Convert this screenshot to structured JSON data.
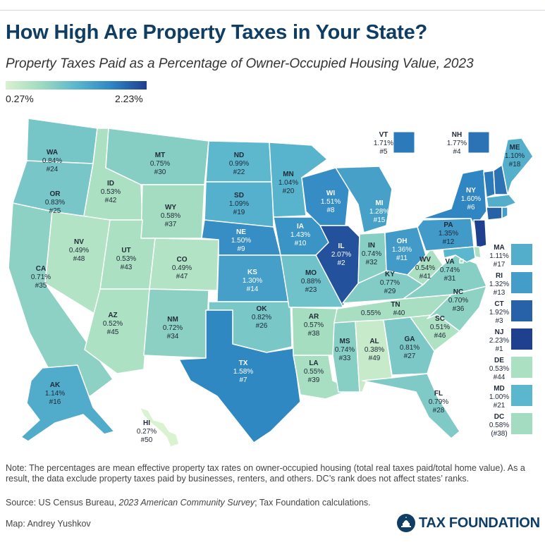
{
  "title": "How High Are Property Taxes in Your State?",
  "subtitle": "Property Taxes Paid as a Percentage of Owner-Occupied Housing Value, 2023",
  "legend": {
    "min": "0.27%",
    "max": "2.23%"
  },
  "colors": {
    "low": "#d9f2cf",
    "mid": "#5bb7cd",
    "high": "#1f3f8f",
    "title": "#0f3d63"
  },
  "states": [
    {
      "abbr": "WA",
      "rate": "0.84%",
      "rank": "#24",
      "value": 0.84
    },
    {
      "abbr": "OR",
      "rate": "0.83%",
      "rank": "#25",
      "value": 0.83
    },
    {
      "abbr": "CA",
      "rate": "0.71%",
      "rank": "#35",
      "value": 0.71
    },
    {
      "abbr": "ID",
      "rate": "0.53%",
      "rank": "#42",
      "value": 0.53
    },
    {
      "abbr": "NV",
      "rate": "0.49%",
      "rank": "#48",
      "value": 0.49
    },
    {
      "abbr": "MT",
      "rate": "0.75%",
      "rank": "#30",
      "value": 0.75
    },
    {
      "abbr": "WY",
      "rate": "0.58%",
      "rank": "#37",
      "value": 0.58
    },
    {
      "abbr": "UT",
      "rate": "0.53%",
      "rank": "#43",
      "value": 0.53
    },
    {
      "abbr": "AZ",
      "rate": "0.52%",
      "rank": "#45",
      "value": 0.52
    },
    {
      "abbr": "CO",
      "rate": "0.49%",
      "rank": "#47",
      "value": 0.49
    },
    {
      "abbr": "NM",
      "rate": "0.72%",
      "rank": "#34",
      "value": 0.72
    },
    {
      "abbr": "ND",
      "rate": "0.99%",
      "rank": "#22",
      "value": 0.99
    },
    {
      "abbr": "SD",
      "rate": "1.09%",
      "rank": "#19",
      "value": 1.09
    },
    {
      "abbr": "NE",
      "rate": "1.50%",
      "rank": "#9",
      "value": 1.5
    },
    {
      "abbr": "KS",
      "rate": "1.30%",
      "rank": "#14",
      "value": 1.3
    },
    {
      "abbr": "OK",
      "rate": "0.82%",
      "rank": "#26",
      "value": 0.82
    },
    {
      "abbr": "TX",
      "rate": "1.58%",
      "rank": "#7",
      "value": 1.58
    },
    {
      "abbr": "MN",
      "rate": "1.04%",
      "rank": "#20",
      "value": 1.04
    },
    {
      "abbr": "IA",
      "rate": "1.43%",
      "rank": "#10",
      "value": 1.43
    },
    {
      "abbr": "MO",
      "rate": "0.88%",
      "rank": "#23",
      "value": 0.88
    },
    {
      "abbr": "AR",
      "rate": "0.57%",
      "rank": "#38",
      "value": 0.57
    },
    {
      "abbr": "LA",
      "rate": "0.55%",
      "rank": "#39",
      "value": 0.55
    },
    {
      "abbr": "WI",
      "rate": "1.51%",
      "rank": "#8",
      "value": 1.51
    },
    {
      "abbr": "IL",
      "rate": "2.07%",
      "rank": "#2",
      "value": 2.07
    },
    {
      "abbr": "MI",
      "rate": "1.28%",
      "rank": "#15",
      "value": 1.28
    },
    {
      "abbr": "IN",
      "rate": "0.74%",
      "rank": "#32",
      "value": 0.74
    },
    {
      "abbr": "OH",
      "rate": "1.36%",
      "rank": "#11",
      "value": 1.36
    },
    {
      "abbr": "KY",
      "rate": "0.77%",
      "rank": "#29",
      "value": 0.77
    },
    {
      "abbr": "TN",
      "rate": "0.55%",
      "rank": "#40",
      "value": 0.55
    },
    {
      "abbr": "MS",
      "rate": "0.74%",
      "rank": "#33",
      "value": 0.74
    },
    {
      "abbr": "AL",
      "rate": "0.38%",
      "rank": "#49",
      "value": 0.38
    },
    {
      "abbr": "GA",
      "rate": "0.81%",
      "rank": "#27",
      "value": 0.81
    },
    {
      "abbr": "FL",
      "rate": "0.79%",
      "rank": "#28",
      "value": 0.79
    },
    {
      "abbr": "SC",
      "rate": "0.51%",
      "rank": "#46",
      "value": 0.51
    },
    {
      "abbr": "NC",
      "rate": "0.70%",
      "rank": "#36",
      "value": 0.7
    },
    {
      "abbr": "VA",
      "rate": "0.74%",
      "rank": "#31",
      "value": 0.74
    },
    {
      "abbr": "WV",
      "rate": "0.54%",
      "rank": "#41",
      "value": 0.54
    },
    {
      "abbr": "PA",
      "rate": "1.35%",
      "rank": "#12",
      "value": 1.35
    },
    {
      "abbr": "NY",
      "rate": "1.60%",
      "rank": "#6",
      "value": 1.6
    },
    {
      "abbr": "ME",
      "rate": "1.10%",
      "rank": "#18",
      "value": 1.1
    },
    {
      "abbr": "AK",
      "rate": "1.14%",
      "rank": "#16",
      "value": 1.14
    },
    {
      "abbr": "HI",
      "rate": "0.27%",
      "rank": "#50",
      "value": 0.27
    }
  ],
  "callouts": [
    {
      "abbr": "VT",
      "rate": "1.71%",
      "rank": "#5",
      "value": 1.71
    },
    {
      "abbr": "NH",
      "rate": "1.77%",
      "rank": "#4",
      "value": 1.77
    }
  ],
  "side_legend": [
    {
      "abbr": "MA",
      "rate": "1.11%",
      "rank": "#17",
      "value": 1.11
    },
    {
      "abbr": "RI",
      "rate": "1.32%",
      "rank": "#13",
      "value": 1.32
    },
    {
      "abbr": "CT",
      "rate": "1.92%",
      "rank": "#3",
      "value": 1.92
    },
    {
      "abbr": "NJ",
      "rate": "2.23%",
      "rank": "#1",
      "value": 2.23
    },
    {
      "abbr": "DE",
      "rate": "0.53%",
      "rank": "#44",
      "value": 0.53
    },
    {
      "abbr": "MD",
      "rate": "1.00%",
      "rank": "#21",
      "value": 1.0
    },
    {
      "abbr": "DC",
      "rate": "0.58%",
      "rank": "(#38)",
      "value": 0.58
    }
  ],
  "note": "Note: The percentages are mean effective property tax rates on owner-occupied housing (total real taxes paid/total home value). As a result, the data exclude property taxes paid by businesses, renters, and others. DC’s rank does not affect states’ ranks.",
  "source_prefix": "Source: US Census Bureau, ",
  "source_italic": "2023 American Community Survey",
  "source_suffix": "; Tax Foundation calculations.",
  "credit": "Map: Andrey Yushkov",
  "logo_text": "TAX FOUNDATION"
}
